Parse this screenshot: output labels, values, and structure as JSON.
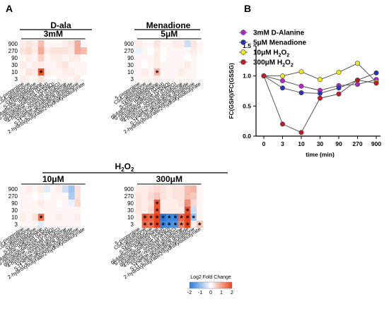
{
  "panel_labels": {
    "a": "A",
    "b": "B"
  },
  "heatmap_groups": [
    {
      "name": "D-ala",
      "subtitle": "3mM"
    },
    {
      "name": "Menadione",
      "subtitle": "5μM"
    },
    {
      "name": "H2O2",
      "subtitle_left": "10μM",
      "subtitle_right": "300μM"
    }
  ],
  "row_labels": [
    "900",
    "270",
    "90",
    "30",
    "10",
    "3"
  ],
  "column_labels": [
    "5-oxoproline",
    "CoA-glutathione",
    "cysteinylglycine",
    "S-lactoylglutathione",
    "glutathione, reduced (GSH)",
    "S-nitrosoglutathione (GSNO)",
    "glutathione, oxidized (GSSG)",
    "4-hydroxy-nonenal-glutathione",
    "cysteine-glutathione disulfide",
    "S-(1,2-dicarboxyethyl)glutathione",
    "2-hydroxybutyrate/2-hydroxyisobutyrate"
  ],
  "colorbar": {
    "title": "Log2 Fold Change",
    "ticks": [
      "-2",
      "-1",
      "0",
      "1",
      "2"
    ],
    "low": "#2a7ad8",
    "mid": "#ffffff",
    "high": "#e8431c"
  },
  "chart_data": [
    {
      "type": "heatmap",
      "title": "D-ala 3mM",
      "rows": [
        "900",
        "270",
        "90",
        "30",
        "10",
        "3"
      ],
      "values": [
        [
          0.2,
          0.3,
          0.2,
          0.7,
          0.1,
          0.1,
          0.1,
          0.2,
          0.3,
          0.9,
          0.1
        ],
        [
          0.3,
          0.4,
          0.2,
          0.9,
          0.2,
          0.3,
          0.3,
          0.3,
          0.2,
          0.9,
          0.7
        ],
        [
          0.1,
          0.2,
          0.1,
          0.5,
          0.1,
          0.2,
          0.2,
          0.1,
          0.2,
          0.2,
          0.0
        ],
        [
          0.2,
          0.1,
          0.2,
          0.2,
          0.1,
          0.1,
          0.2,
          0.3,
          0.1,
          0.1,
          0.1
        ],
        [
          0.1,
          0.3,
          0.2,
          1.8,
          0.2,
          0.1,
          0.1,
          0.2,
          0.2,
          0.1,
          0.1
        ],
        [
          0.2,
          0.1,
          0.1,
          0.3,
          0.1,
          0.0,
          0.1,
          0.1,
          0.1,
          0.2,
          0.0
        ]
      ],
      "significant": [
        [
          4,
          3
        ]
      ]
    },
    {
      "type": "heatmap",
      "title": "Menadione 5μM",
      "rows": [
        "900",
        "270",
        "90",
        "30",
        "10",
        "3"
      ],
      "values": [
        [
          0.2,
          0.1,
          0.1,
          0.3,
          0.1,
          0.1,
          0.2,
          0.2,
          -0.5,
          0.3,
          0.1
        ],
        [
          -0.2,
          0.1,
          0.0,
          0.2,
          0.0,
          0.1,
          0.1,
          0.1,
          0.1,
          0.2,
          0.1
        ],
        [
          0.1,
          0.1,
          0.1,
          0.2,
          0.0,
          0.1,
          0.1,
          0.1,
          0.0,
          0.1,
          0.0
        ],
        [
          0.1,
          0.0,
          0.1,
          0.2,
          0.1,
          0.1,
          0.1,
          0.1,
          0.2,
          0.1,
          0.0
        ],
        [
          0.1,
          0.2,
          0.1,
          0.8,
          0.1,
          0.1,
          0.1,
          0.2,
          0.1,
          0.1,
          0.0
        ],
        [
          0.1,
          0.1,
          0.1,
          0.2,
          0.1,
          0.1,
          0.1,
          0.1,
          0.1,
          0.1,
          0.0
        ]
      ],
      "significant": [
        [
          4,
          3
        ]
      ]
    },
    {
      "type": "heatmap",
      "title": "H2O2 10μM",
      "rows": [
        "900",
        "270",
        "90",
        "30",
        "10",
        "3"
      ],
      "values": [
        [
          0.1,
          0.2,
          0.1,
          0.2,
          -0.3,
          0.1,
          0.2,
          -0.5,
          -0.9,
          0.3,
          0.0
        ],
        [
          0.1,
          0.1,
          0.0,
          0.1,
          0.0,
          0.1,
          0.1,
          0.1,
          -0.8,
          0.3,
          0.0
        ],
        [
          0.1,
          0.1,
          0.1,
          0.2,
          0.1,
          0.1,
          0.0,
          0.1,
          -0.2,
          0.4,
          0.0
        ],
        [
          0.1,
          0.1,
          0.1,
          0.1,
          0.1,
          0.1,
          0.1,
          0.1,
          0.1,
          0.1,
          0.0
        ],
        [
          0.2,
          0.1,
          0.3,
          1.5,
          0.1,
          0.1,
          0.2,
          0.1,
          0.1,
          0.2,
          0.0
        ],
        [
          0.1,
          0.1,
          0.1,
          -0.3,
          0.1,
          0.1,
          0.1,
          0.1,
          0.1,
          0.1,
          0.0
        ]
      ],
      "significant": [
        [
          4,
          3
        ]
      ]
    },
    {
      "type": "heatmap",
      "title": "H2O2 300μM",
      "rows": [
        "900",
        "270",
        "90",
        "30",
        "10",
        "3"
      ],
      "values": [
        [
          0.2,
          0.2,
          0.3,
          0.4,
          0.3,
          0.2,
          0.3,
          0.3,
          0.7,
          0.8,
          0.1
        ],
        [
          0.3,
          0.2,
          0.4,
          0.6,
          0.3,
          0.2,
          0.3,
          0.3,
          0.7,
          0.6,
          0.1
        ],
        [
          0.3,
          0.2,
          0.3,
          1.8,
          0.2,
          0.2,
          0.2,
          0.3,
          1.2,
          0.4,
          0.1
        ],
        [
          0.3,
          0.2,
          0.4,
          1.8,
          0.2,
          0.2,
          0.2,
          0.2,
          1.8,
          -0.5,
          0.1
        ],
        [
          0.2,
          1.8,
          1.6,
          2.0,
          -2.0,
          -1.8,
          -1.8,
          1.6,
          2.0,
          -0.9,
          0.1
        ],
        [
          0.1,
          1.6,
          1.5,
          2.0,
          -1.8,
          -1.7,
          -1.6,
          1.3,
          2.0,
          0.2,
          0.6
        ]
      ],
      "significant": [
        [
          2,
          3
        ],
        [
          3,
          3
        ],
        [
          3,
          8
        ],
        [
          4,
          1
        ],
        [
          4,
          2
        ],
        [
          4,
          3
        ],
        [
          4,
          4
        ],
        [
          4,
          5
        ],
        [
          4,
          6
        ],
        [
          4,
          7
        ],
        [
          4,
          8
        ],
        [
          4,
          9
        ],
        [
          5,
          1
        ],
        [
          5,
          2
        ],
        [
          5,
          3
        ],
        [
          5,
          4
        ],
        [
          5,
          5
        ],
        [
          5,
          6
        ],
        [
          5,
          7
        ],
        [
          5,
          8
        ],
        [
          5,
          10
        ]
      ]
    },
    {
      "type": "line",
      "xlabel": "time (min)",
      "ylabel": "FC(GSH)/FC(GSSG)",
      "categories": [
        "0",
        "3",
        "10",
        "30",
        "90",
        "270",
        "900"
      ],
      "ylim": [
        0,
        1.5
      ],
      "yticks": [
        "0.0",
        "0.5",
        "1.0",
        "1.5"
      ],
      "legend_position": "top-left",
      "series": [
        {
          "name": "3mM D-Alanine",
          "color": "#b524c6",
          "values": [
            1.0,
            0.92,
            0.83,
            0.76,
            0.84,
            0.86,
            0.94
          ]
        },
        {
          "name": "5μM Menadione",
          "color": "#2a32b6",
          "values": [
            1.0,
            0.8,
            0.72,
            0.71,
            0.8,
            0.93,
            1.05
          ]
        },
        {
          "name": "10μM H2O2",
          "color": "#ecea1c",
          "values": [
            1.0,
            1.0,
            1.07,
            0.94,
            1.06,
            1.21,
            0.9
          ]
        },
        {
          "name": "300μM H2O2",
          "color": "#c11a22",
          "values": [
            1.0,
            0.2,
            0.06,
            0.63,
            0.7,
            0.93,
            0.88
          ]
        }
      ]
    }
  ]
}
